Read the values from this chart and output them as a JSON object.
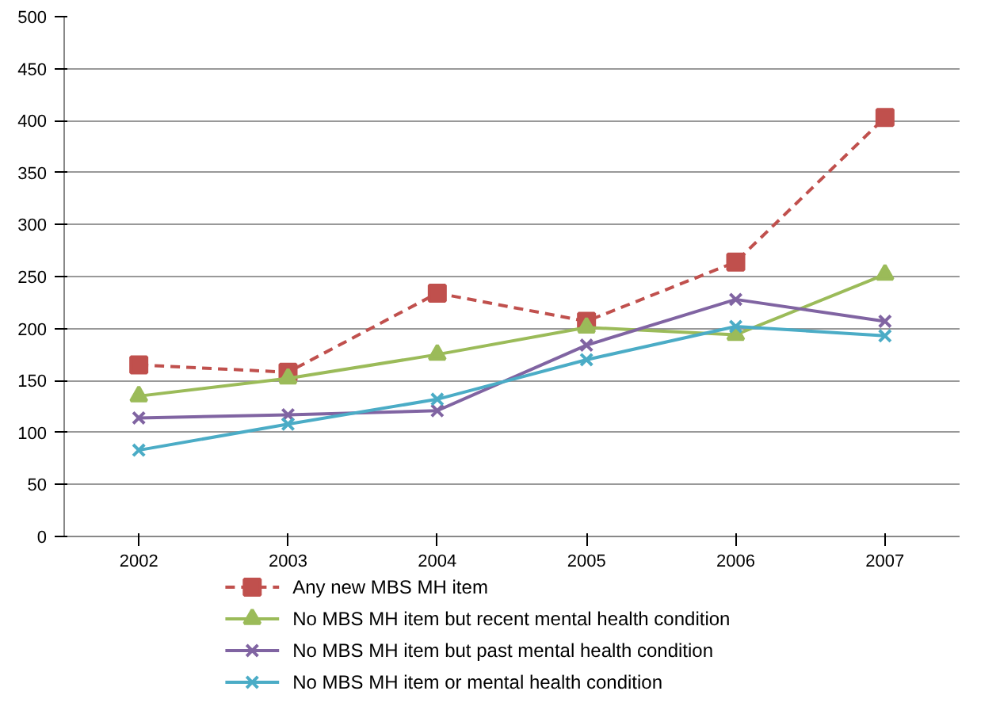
{
  "chart_data": {
    "type": "line",
    "categories": [
      "2002",
      "2003",
      "2004",
      "2005",
      "2006",
      "2007"
    ],
    "ylim": [
      0,
      500
    ],
    "yticks": [
      0,
      50,
      100,
      150,
      200,
      250,
      300,
      350,
      400,
      450,
      500
    ],
    "grid": "y",
    "legend": "bottom",
    "series": [
      {
        "name": "Any new MBS MH item",
        "color": "#c0504d",
        "values": [
          165,
          158,
          234,
          207,
          264,
          403
        ],
        "marker": "square",
        "line_style": "dashed"
      },
      {
        "name": "No MBS MH item but recent mental health condition",
        "color": "#9bbb59",
        "values": [
          135,
          152,
          175,
          201,
          194,
          252
        ],
        "marker": "triangle",
        "line_style": "solid"
      },
      {
        "name": "No MBS MH item but past mental health condition",
        "color": "#8064a2",
        "values": [
          114,
          117,
          121,
          184,
          228,
          207
        ],
        "marker": "cross",
        "line_style": "solid"
      },
      {
        "name": "No MBS MH item or mental health condition",
        "color": "#4bacc6",
        "values": [
          83,
          108,
          132,
          170,
          202,
          193
        ],
        "marker": "cross",
        "line_style": "solid"
      }
    ]
  }
}
